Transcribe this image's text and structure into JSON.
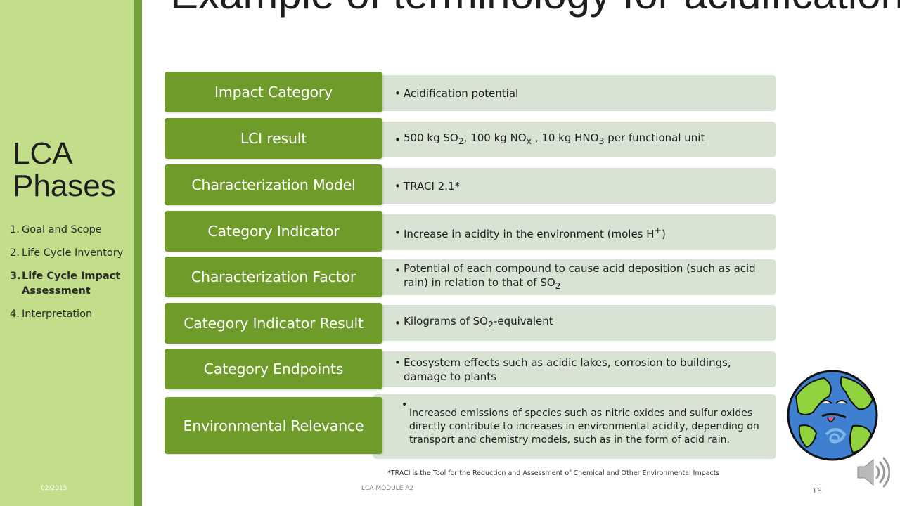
{
  "slide": {
    "title": "Example of terminology for acidification",
    "footnote": "*TRACI is the Tool for the Reduction and Assessment of Chemical and Other Environmental Impacts"
  },
  "sidebar": {
    "title": "LCA Phases",
    "phases": [
      {
        "num": "1.",
        "label": "Goal and Scope",
        "active": false
      },
      {
        "num": "2.",
        "label": "Life Cycle Inventory",
        "active": false
      },
      {
        "num": "3.",
        "label": "Life Cycle Impact Assessment",
        "active": true
      },
      {
        "num": "4.",
        "label": "Interpretation",
        "active": false
      }
    ]
  },
  "rows": [
    {
      "label": "Impact Category",
      "text": "Acidification potential"
    },
    {
      "label": "LCI result",
      "text": "500 kg SO2, 100 kg NOx , 10 kg HNO3 per functional unit"
    },
    {
      "label": "Characterization Model",
      "text": "TRACI 2.1*"
    },
    {
      "label": "Category Indicator",
      "text": "Increase in acidity in the environment (moles H+)"
    },
    {
      "label": "Characterization Factor",
      "text": "Potential of each compound to cause acid deposition (such as acid rain) in relation to that of SO2"
    },
    {
      "label": "Category Indicator Result",
      "text": "Kilograms of SO2-equivalent"
    },
    {
      "label": "Category Endpoints",
      "text": "Ecosystem effects such as acidic lakes, corrosion to buildings, damage to plants"
    },
    {
      "label": "Environmental Relevance",
      "text": "Increased emissions of species such as nitric oxides and sulfur oxides directly contribute to increases in environmental acidity, depending on transport and chemistry models, such as in the form of acid rain."
    }
  ],
  "footer": {
    "date": "02/2015",
    "module": "LCA MODULE A2",
    "page": "18"
  },
  "icons": [
    "sick-earth-icon",
    "speaker-icon"
  ]
}
